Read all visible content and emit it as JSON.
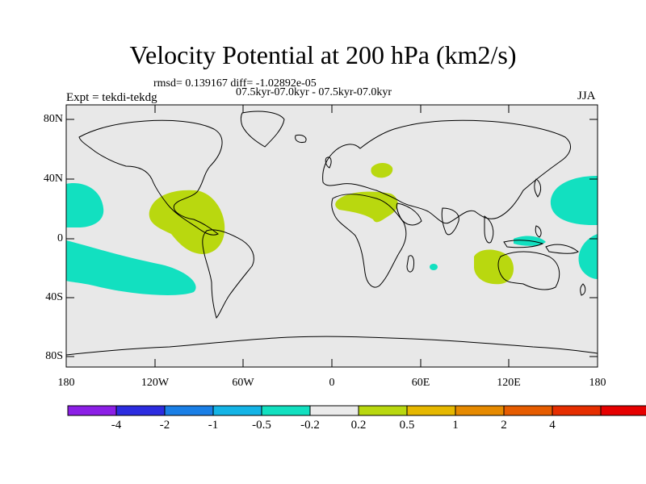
{
  "title": "Velocity Potential at 200 hPa (km2/s)",
  "stats_line": "rmsd= 0.139167 diff= -1.02892e-05",
  "period_line": "07.5kyr-07.0kyr - 07.5kyr-07.0kyr",
  "expt_label": "Expt = tekdi-tekdg",
  "season": "JJA",
  "lat_ticks": [
    "80N",
    "40N",
    "0",
    "40S",
    "80S"
  ],
  "lon_ticks": [
    "180",
    "120W",
    "60W",
    "0",
    "60E",
    "120E",
    "180"
  ],
  "colorbar": {
    "colors": [
      "#8c1fe6",
      "#2c2ce0",
      "#1a7fe6",
      "#14b4e6",
      "#12e0c0",
      "#ebebeb",
      "#b9d80f",
      "#e6b800",
      "#e68a00",
      "#e65c00",
      "#e62e00",
      "#e60000"
    ],
    "labels": [
      "-4",
      "-2",
      "-1",
      "-0.5",
      "-0.2",
      "0.2",
      "0.5",
      "1",
      "2",
      "4"
    ]
  },
  "colors": {
    "ocean_bg": "#e8e8e8",
    "negative": "#12e0c0",
    "positive": "#b9d80f"
  }
}
